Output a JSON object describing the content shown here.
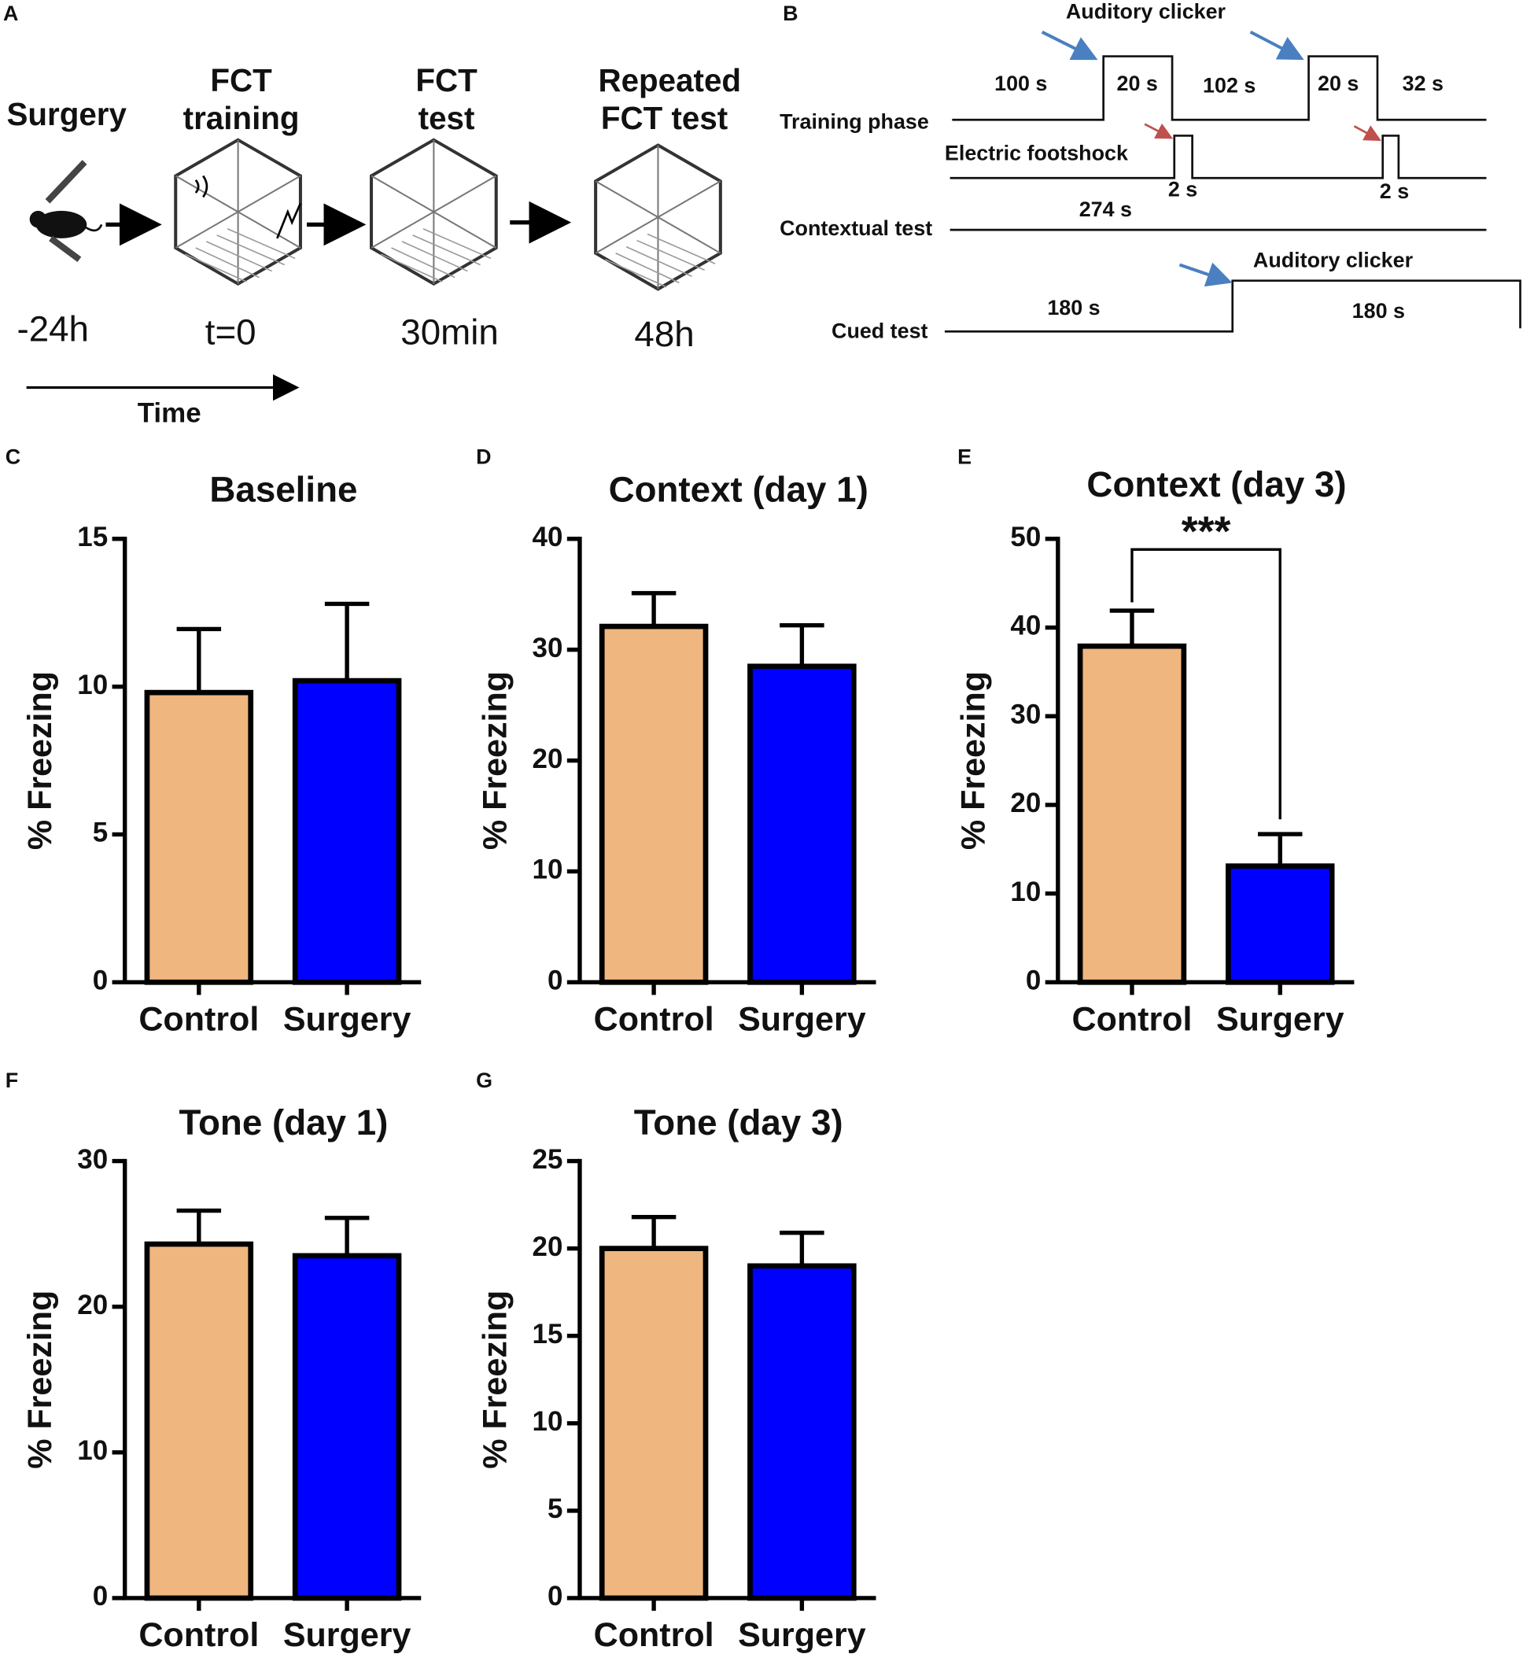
{
  "panel_a": {
    "letter": "A",
    "stages": [
      {
        "title": [
          "Surgery"
        ],
        "time": "-24h"
      },
      {
        "title": [
          "FCT",
          "training"
        ],
        "time": "t=0"
      },
      {
        "title": [
          "FCT",
          "test"
        ],
        "time": "30min"
      },
      {
        "title": [
          "Repeated",
          "FCT test"
        ],
        "time": "48h"
      }
    ],
    "axis_label": "Time"
  },
  "panel_b": {
    "letter": "B",
    "training": {
      "label": "Training phase",
      "cue": "Auditory clicker",
      "durations": [
        "100 s",
        "20 s",
        "102 s",
        "20 s",
        "32 s"
      ]
    },
    "footshock": {
      "label": "Electric footshock",
      "durations": [
        "2 s",
        "2 s"
      ]
    },
    "contextual": {
      "label": "Contextual test",
      "duration": "274 s"
    },
    "cued": {
      "label": "Cued test",
      "cue": "Auditory clicker",
      "durations": [
        "180 s",
        "180 s"
      ]
    }
  },
  "chart_data": [
    {
      "type": "bar",
      "panel_label": "C",
      "title": "Baseline",
      "ylabel": "% Freezing",
      "categories": [
        "Control",
        "Surgery"
      ],
      "values": [
        9.8,
        10.2
      ],
      "errors": [
        2.15,
        2.6
      ],
      "colors": [
        "#f0b67f",
        "#0000ff"
      ],
      "ylim": [
        0,
        15
      ],
      "yticks": [
        0,
        5,
        10,
        15
      ]
    },
    {
      "type": "bar",
      "panel_label": "D",
      "title": "Context (day 1)",
      "ylabel": "% Freezing",
      "categories": [
        "Control",
        "Surgery"
      ],
      "values": [
        32.1,
        28.5
      ],
      "errors": [
        3.0,
        3.7
      ],
      "colors": [
        "#f0b67f",
        "#0000ff"
      ],
      "ylim": [
        0,
        40
      ],
      "yticks": [
        0,
        10,
        20,
        30,
        40
      ]
    },
    {
      "type": "bar",
      "panel_label": "E",
      "title": "Context (day 3)",
      "ylabel": "% Freezing",
      "categories": [
        "Control",
        "Surgery"
      ],
      "values": [
        37.9,
        13.1
      ],
      "errors": [
        4.0,
        3.6
      ],
      "colors": [
        "#f0b67f",
        "#0000ff"
      ],
      "ylim": [
        0,
        50
      ],
      "yticks": [
        0,
        10,
        20,
        30,
        40,
        50
      ],
      "annotation": "***"
    },
    {
      "type": "bar",
      "panel_label": "F",
      "title": "Tone (day 1)",
      "ylabel": "% Freezing",
      "categories": [
        "Control",
        "Surgery"
      ],
      "values": [
        24.3,
        23.5
      ],
      "errors": [
        2.3,
        2.6
      ],
      "colors": [
        "#f0b67f",
        "#0000ff"
      ],
      "ylim": [
        0,
        30
      ],
      "yticks": [
        0,
        10,
        20,
        30
      ]
    },
    {
      "type": "bar",
      "panel_label": "G",
      "title": "Tone (day 3)",
      "ylabel": "% Freezing",
      "categories": [
        "Control",
        "Surgery"
      ],
      "values": [
        20.0,
        19.0
      ],
      "errors": [
        1.8,
        1.9
      ],
      "colors": [
        "#f0b67f",
        "#0000ff"
      ],
      "ylim": [
        0,
        25
      ],
      "yticks": [
        0,
        5,
        10,
        15,
        20,
        25
      ]
    }
  ]
}
